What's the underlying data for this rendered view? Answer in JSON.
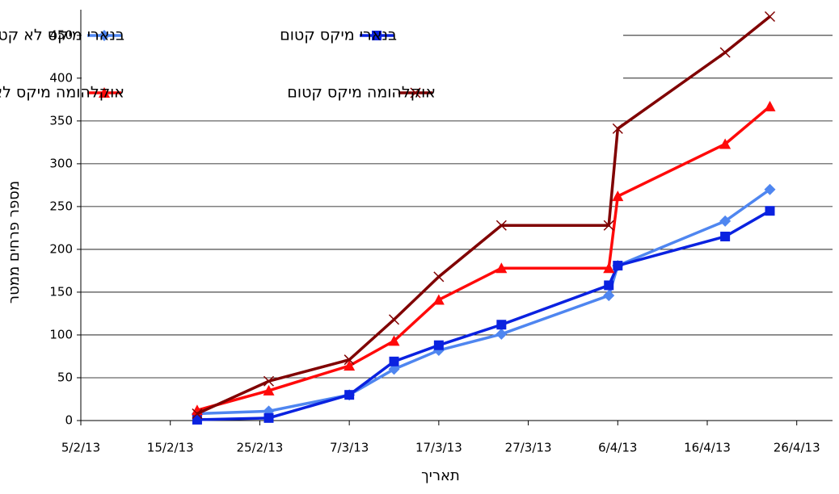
{
  "chart_data": {
    "type": "line",
    "x_label": "תאריך",
    "y_label": "מספר פרחים ממטר",
    "x": [
      "2013-02-18",
      "2013-02-26",
      "2013-03-07",
      "2013-03-12",
      "2013-03-17",
      "2013-03-24",
      "2013-04-05",
      "2013-04-06",
      "2013-04-18",
      "2013-04-23"
    ],
    "series": [
      {
        "name": "בנארי מיקס לא קטום",
        "color": "#4f86f0",
        "marker": "diamond",
        "values": [
          8,
          11,
          30,
          60,
          82,
          101,
          146,
          181,
          233,
          270
        ]
      },
      {
        "name": "בנארי מיקס קטום",
        "color": "#0a22e0",
        "marker": "square",
        "values": [
          1,
          3,
          30,
          69,
          88,
          112,
          158,
          181,
          215,
          245
        ]
      },
      {
        "name": "אוקלהומה מיקס לא קטום",
        "color": "#ff0a0a",
        "marker": "triangle",
        "values": [
          12,
          35,
          64,
          93,
          141,
          178,
          178,
          262,
          323,
          367
        ]
      },
      {
        "name": "אוקלהומה מיקס קטום",
        "color": "#800000",
        "marker": "x",
        "values": [
          8,
          46,
          71,
          118,
          168,
          228,
          228,
          341,
          430,
          472
        ]
      }
    ],
    "xlim": [
      "2013-02-05",
      "2013-04-30"
    ],
    "xticks": [
      {
        "value": "2013-02-05",
        "label": "5/2/13"
      },
      {
        "value": "2013-02-15",
        "label": "15/2/13"
      },
      {
        "value": "2013-02-25",
        "label": "25/2/13"
      },
      {
        "value": "2013-03-07",
        "label": "7/3/13"
      },
      {
        "value": "2013-03-17",
        "label": "17/3/13"
      },
      {
        "value": "2013-03-27",
        "label": "27/3/13"
      },
      {
        "value": "2013-04-06",
        "label": "6/4/13"
      },
      {
        "value": "2013-04-16",
        "label": "16/4/13"
      },
      {
        "value": "2013-04-26",
        "label": "26/4/13"
      }
    ],
    "ylim": [
      0,
      480
    ],
    "yticks": [
      0,
      50,
      100,
      150,
      200,
      250,
      300,
      350,
      400,
      450
    ],
    "grid": true
  }
}
